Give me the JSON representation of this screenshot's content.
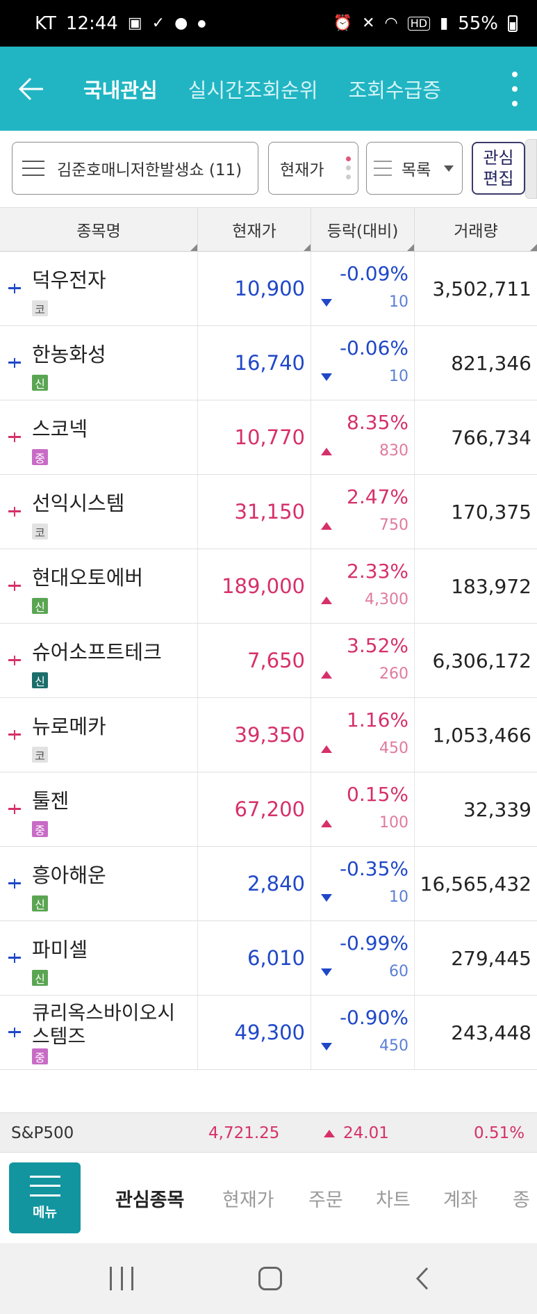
{
  "status_bar": {
    "carrier": "KT",
    "time": "12:44",
    "battery": "55%"
  },
  "header": {
    "tabs": [
      {
        "label": "국내관심",
        "active": true
      },
      {
        "label": "실시간조회순위",
        "active": false
      },
      {
        "label": "조회수급증",
        "active": false
      }
    ]
  },
  "filters": {
    "group": "김준호매니저한발생쇼 (11)",
    "price": "현재가",
    "view": "목록",
    "edit": [
      "관심",
      "편집"
    ]
  },
  "table": {
    "headers": [
      "종목명",
      "현재가",
      "등락(대비)",
      "거래량"
    ],
    "rows": [
      {
        "name": "덕우전자",
        "market": "코",
        "price": "10,900",
        "pct": "-0.09%",
        "diff": "10",
        "volume": "3,502,711",
        "dir": "down"
      },
      {
        "name": "한농화성",
        "market": "신",
        "price": "16,740",
        "pct": "-0.06%",
        "diff": "10",
        "volume": "821,346",
        "dir": "down"
      },
      {
        "name": "스코넥",
        "market": "중",
        "price": "10,770",
        "pct": "8.35%",
        "diff": "830",
        "volume": "766,734",
        "dir": "up"
      },
      {
        "name": "선익시스템",
        "market": "코",
        "price": "31,150",
        "pct": "2.47%",
        "diff": "750",
        "volume": "170,375",
        "dir": "up"
      },
      {
        "name": "현대오토에버",
        "market": "신",
        "price": "189,000",
        "pct": "2.33%",
        "diff": "4,300",
        "volume": "183,972",
        "dir": "up"
      },
      {
        "name": "슈어소프트테크",
        "market": "신",
        "price": "7,650",
        "pct": "3.52%",
        "diff": "260",
        "volume": "6,306,172",
        "dir": "up"
      },
      {
        "name": "뉴로메카",
        "market": "코",
        "price": "39,350",
        "pct": "1.16%",
        "diff": "450",
        "volume": "1,053,466",
        "dir": "up"
      },
      {
        "name": "툴젠",
        "market": "중",
        "price": "67,200",
        "pct": "0.15%",
        "diff": "100",
        "volume": "32,339",
        "dir": "up"
      },
      {
        "name": "흥아해운",
        "market": "신",
        "price": "2,840",
        "pct": "-0.35%",
        "diff": "10",
        "volume": "16,565,432",
        "dir": "down"
      },
      {
        "name": "파미셀",
        "market": "신",
        "price": "6,010",
        "pct": "-0.99%",
        "diff": "60",
        "volume": "279,445",
        "dir": "down"
      },
      {
        "name": "큐리옥스바이오시스템즈",
        "market": "중",
        "price": "49,300",
        "pct": "-0.90%",
        "diff": "450",
        "volume": "243,448",
        "dir": "down"
      }
    ]
  },
  "index_bar": {
    "name": "S&P500",
    "value": "4,721.25",
    "change": "24.01",
    "pct": "0.51%"
  },
  "bottom_nav": {
    "menu_label": "메뉴",
    "items": [
      "관심종목",
      "현재가",
      "주문",
      "차트",
      "계좌",
      "종"
    ]
  },
  "colors": {
    "accent": "#21b5c3",
    "up": "#d6306a",
    "down": "#1f47c8"
  }
}
